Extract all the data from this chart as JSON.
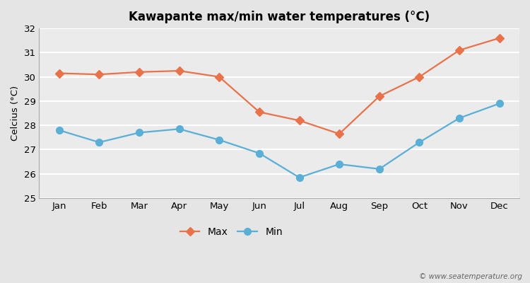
{
  "title": "Kawapante max/min water temperatures (°C)",
  "ylabel": "Celcius (°C)",
  "months": [
    "Jan",
    "Feb",
    "Mar",
    "Apr",
    "May",
    "Jun",
    "Jul",
    "Aug",
    "Sep",
    "Oct",
    "Nov",
    "Dec"
  ],
  "max_values": [
    30.15,
    30.1,
    30.2,
    30.25,
    30.0,
    28.55,
    28.2,
    27.65,
    29.2,
    30.0,
    31.1,
    31.6
  ],
  "min_values": [
    27.8,
    27.3,
    27.7,
    27.85,
    27.4,
    26.85,
    25.85,
    26.4,
    26.2,
    27.3,
    28.3,
    28.9
  ],
  "max_color": "#e8724a",
  "min_color": "#5aafd6",
  "bg_color": "#e5e5e5",
  "plot_bg_color": "#ebebeb",
  "grid_color": "#ffffff",
  "ylim": [
    25,
    32
  ],
  "yticks": [
    25,
    26,
    27,
    28,
    29,
    30,
    31,
    32
  ],
  "watermark": "© www.seatemperature.org",
  "legend_max": "Max",
  "legend_min": "Min",
  "max_marker": "D",
  "min_marker": "o",
  "max_marker_size": 6,
  "min_marker_size": 7,
  "line_width": 1.6
}
